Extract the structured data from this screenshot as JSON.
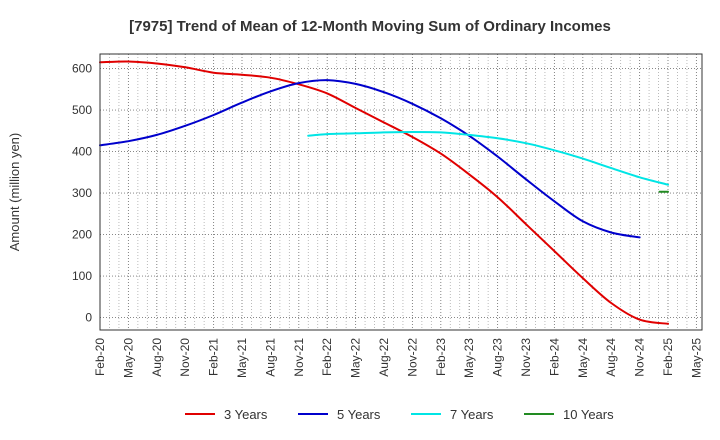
{
  "chart_data": {
    "type": "line",
    "title": "[7975]  Trend of Mean of 12-Month Moving Sum of Ordinary Incomes",
    "xlabel": "",
    "ylabel": "Amount (million yen)",
    "ylim": [
      -30,
      635
    ],
    "yticks": [
      0,
      100,
      200,
      300,
      400,
      500,
      600
    ],
    "xticks": [
      "Feb-20",
      "May-20",
      "Aug-20",
      "Nov-20",
      "Feb-21",
      "May-21",
      "Aug-21",
      "Nov-21",
      "Feb-22",
      "May-22",
      "Aug-22",
      "Nov-22",
      "Feb-23",
      "May-23",
      "Aug-23",
      "Nov-23",
      "Feb-24",
      "May-24",
      "Aug-24",
      "Nov-24",
      "Feb-25",
      "May-25"
    ],
    "series": [
      {
        "name": "3 Years",
        "color": "#e00000",
        "points": [
          [
            0,
            615
          ],
          [
            1,
            617
          ],
          [
            2,
            612
          ],
          [
            3,
            603
          ],
          [
            4,
            590
          ],
          [
            5,
            585
          ],
          [
            6,
            578
          ],
          [
            7,
            562
          ],
          [
            8,
            540
          ],
          [
            9,
            505
          ],
          [
            10,
            470
          ],
          [
            11,
            435
          ],
          [
            12,
            395
          ],
          [
            13,
            345
          ],
          [
            14,
            290
          ],
          [
            15,
            225
          ],
          [
            16,
            160
          ],
          [
            17,
            95
          ],
          [
            18,
            35
          ],
          [
            19,
            -5
          ],
          [
            20,
            -15
          ]
        ]
      },
      {
        "name": "5 Years",
        "color": "#0000cc",
        "points": [
          [
            0,
            415
          ],
          [
            1,
            425
          ],
          [
            2,
            440
          ],
          [
            3,
            462
          ],
          [
            4,
            488
          ],
          [
            5,
            518
          ],
          [
            6,
            545
          ],
          [
            7,
            565
          ],
          [
            8,
            572
          ],
          [
            9,
            563
          ],
          [
            10,
            543
          ],
          [
            11,
            515
          ],
          [
            12,
            480
          ],
          [
            13,
            438
          ],
          [
            14,
            388
          ],
          [
            15,
            333
          ],
          [
            16,
            280
          ],
          [
            17,
            232
          ],
          [
            18,
            205
          ],
          [
            19,
            193
          ]
        ]
      },
      {
        "name": "7 Years",
        "color": "#00e5e5",
        "points": [
          [
            7.33,
            438
          ],
          [
            8,
            442
          ],
          [
            9,
            444
          ],
          [
            10,
            446
          ],
          [
            11,
            447
          ],
          [
            12,
            446
          ],
          [
            13,
            440
          ],
          [
            14,
            432
          ],
          [
            15,
            420
          ],
          [
            16,
            403
          ],
          [
            17,
            383
          ],
          [
            18,
            360
          ],
          [
            19,
            338
          ],
          [
            20,
            320
          ]
        ]
      },
      {
        "name": "10 Years",
        "color": "#228b22",
        "points": [
          [
            19.7,
            303
          ],
          [
            20,
            303
          ]
        ]
      }
    ],
    "legend": "bottom",
    "grid": true
  }
}
